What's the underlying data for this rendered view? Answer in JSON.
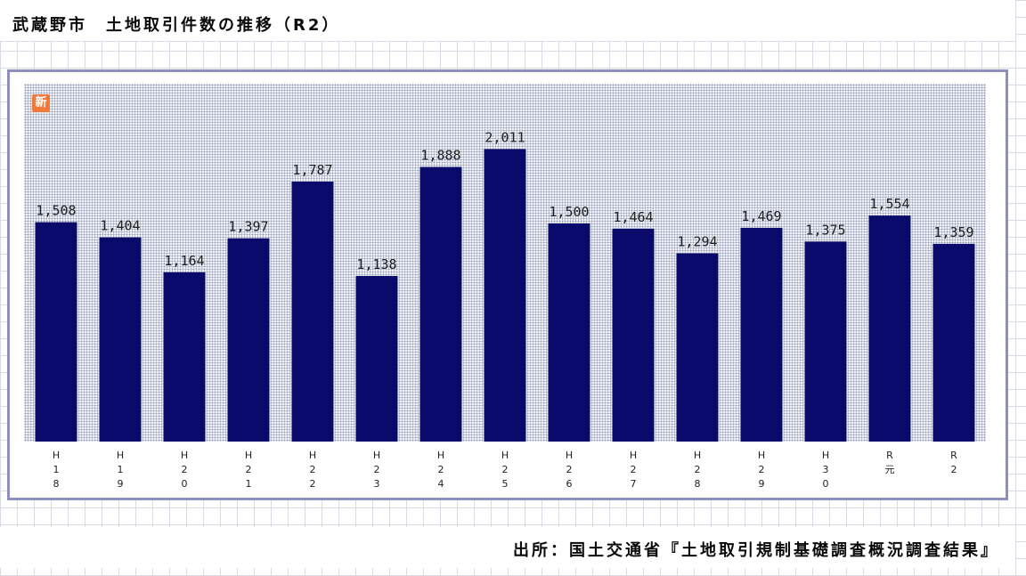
{
  "title": "武蔵野市　土地取引件数の推移（R2）",
  "badge": "新",
  "source": "出所：国土交通省『土地取引規制基礎調査概況調査結果』",
  "colors": {
    "bar": "#0a0a6a",
    "frame": "#8c90c0",
    "badge": "#f07a3a"
  },
  "chart_data": {
    "type": "bar",
    "categories": [
      "H18",
      "H19",
      "H20",
      "H21",
      "H22",
      "H23",
      "H24",
      "H25",
      "H26",
      "H27",
      "H28",
      "H29",
      "H30",
      "R元",
      "R2"
    ],
    "values": [
      1508,
      1404,
      1164,
      1397,
      1787,
      1138,
      1888,
      2011,
      1500,
      1464,
      1294,
      1469,
      1375,
      1554,
      1359
    ],
    "data_labels": [
      "1,508",
      "1,404",
      "1,164",
      "1,397",
      "1,787",
      "1,138",
      "1,888",
      "2,011",
      "1,500",
      "1,464",
      "1,294",
      "1,469",
      "1,375",
      "1,554",
      "1,359"
    ],
    "title": "武蔵野市　土地取引件数の推移（R2）",
    "xlabel": "",
    "ylabel": "",
    "ylim": [
      0,
      2460
    ],
    "grid": false,
    "legend": "none"
  }
}
